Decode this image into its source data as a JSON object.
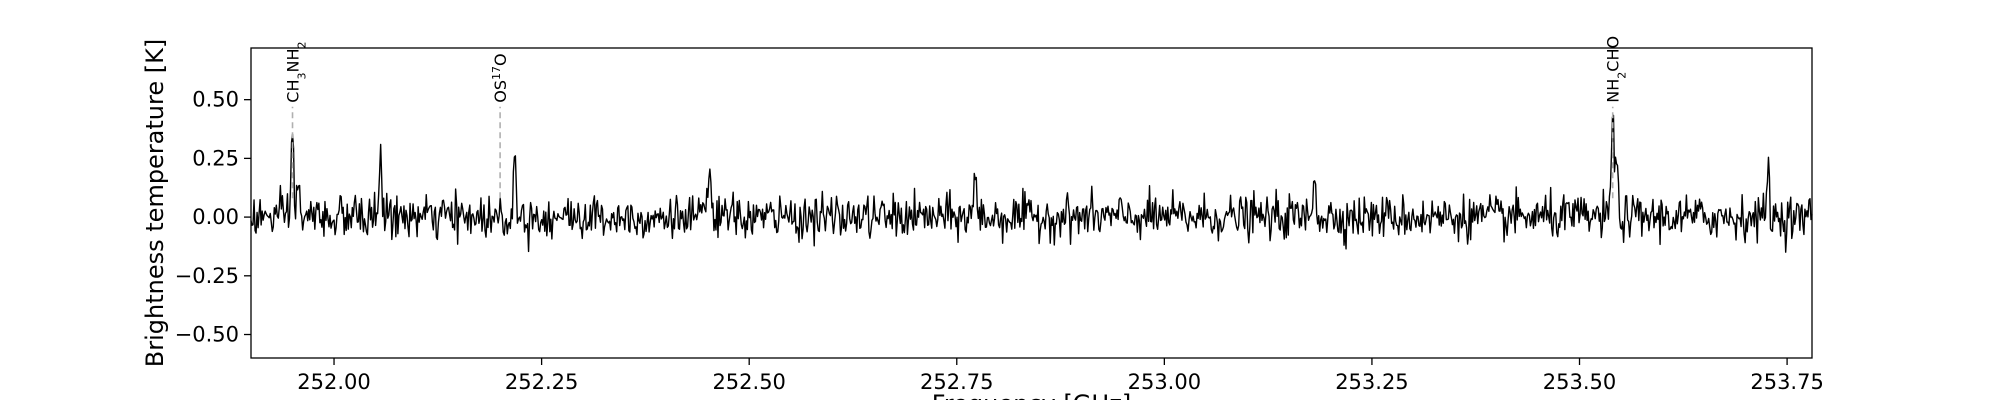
{
  "chart_data": {
    "type": "line",
    "title": "",
    "xlabel": "Frequency [GHz]",
    "ylabel": "Brightness temperature [K]",
    "xlim": [
      251.9,
      253.78
    ],
    "ylim": [
      -0.6,
      0.72
    ],
    "x_ticks": [
      {
        "value": 252.0,
        "label": "252.00"
      },
      {
        "value": 252.25,
        "label": "252.25"
      },
      {
        "value": 252.5,
        "label": "252.50"
      },
      {
        "value": 252.75,
        "label": "252.75"
      },
      {
        "value": 253.0,
        "label": "253.00"
      },
      {
        "value": 253.25,
        "label": "253.25"
      },
      {
        "value": 253.5,
        "label": "253.50"
      },
      {
        "value": 253.75,
        "label": "253.75"
      }
    ],
    "y_ticks": [
      {
        "value": 0.5,
        "label": "0.50"
      },
      {
        "value": 0.25,
        "label": "0.25"
      },
      {
        "value": 0.0,
        "label": "0.00"
      },
      {
        "value": -0.25,
        "label": "−0.25"
      },
      {
        "value": -0.5,
        "label": "−0.50"
      }
    ],
    "grid": false,
    "line_color": "#000000",
    "marker_color": "#b0b0b0",
    "annotations": [
      {
        "x": 251.95,
        "label": "CH3NH2",
        "parts": [
          [
            "CH",
            ""
          ],
          [
            "3",
            "sub"
          ],
          [
            "NH",
            ""
          ],
          [
            "2",
            "sub"
          ]
        ],
        "y_from": 0.08,
        "y_to": 0.47
      },
      {
        "x": 252.2,
        "label": "OS17O",
        "parts": [
          [
            "OS",
            ""
          ],
          [
            "17",
            "sup"
          ],
          [
            "O",
            ""
          ]
        ],
        "y_from": 0.08,
        "y_to": 0.47
      },
      {
        "x": 253.54,
        "label": "NH2CHO",
        "parts": [
          [
            "NH",
            ""
          ],
          [
            "2",
            "sub"
          ],
          [
            "CHO",
            ""
          ]
        ],
        "y_from": 0.08,
        "y_to": 0.47
      }
    ],
    "series": [
      {
        "noise_sigma": 0.045,
        "channel_width_ghz": 0.00122,
        "peaks": [
          {
            "x": 251.95,
            "y": 0.36
          },
          {
            "x": 251.957,
            "y": 0.14
          },
          {
            "x": 252.056,
            "y": 0.3
          },
          {
            "x": 252.218,
            "y": 0.27
          },
          {
            "x": 252.452,
            "y": 0.24
          },
          {
            "x": 252.772,
            "y": 0.19
          },
          {
            "x": 253.181,
            "y": 0.21
          },
          {
            "x": 253.54,
            "y": 0.47
          },
          {
            "x": 253.545,
            "y": 0.2
          },
          {
            "x": 253.727,
            "y": 0.2
          }
        ]
      }
    ]
  }
}
